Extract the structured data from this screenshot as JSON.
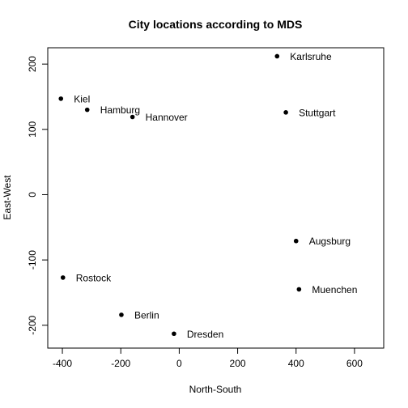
{
  "chart_data": {
    "type": "scatter",
    "title": "City locations according to MDS",
    "xlabel": "North-South",
    "ylabel": "East-West",
    "xlim": [
      -450,
      700
    ],
    "ylim": [
      -235,
      225
    ],
    "xticks": [
      -400,
      -200,
      0,
      200,
      400,
      600
    ],
    "yticks": [
      -200,
      -100,
      0,
      100,
      200
    ],
    "grid": false,
    "legend": "none",
    "point_color": "#000000",
    "points": [
      {
        "label": "Karlsruhe",
        "x": 335,
        "y": 212
      },
      {
        "label": "Kiel",
        "x": -405,
        "y": 147
      },
      {
        "label": "Hamburg",
        "x": -315,
        "y": 130
      },
      {
        "label": "Hannover",
        "x": -160,
        "y": 119
      },
      {
        "label": "Stuttgart",
        "x": 365,
        "y": 126
      },
      {
        "label": "Augsburg",
        "x": 400,
        "y": -71
      },
      {
        "label": "Rostock",
        "x": -398,
        "y": -127
      },
      {
        "label": "Muenchen",
        "x": 410,
        "y": -145
      },
      {
        "label": "Berlin",
        "x": -198,
        "y": -184
      },
      {
        "label": "Dresden",
        "x": -18,
        "y": -213
      }
    ]
  }
}
